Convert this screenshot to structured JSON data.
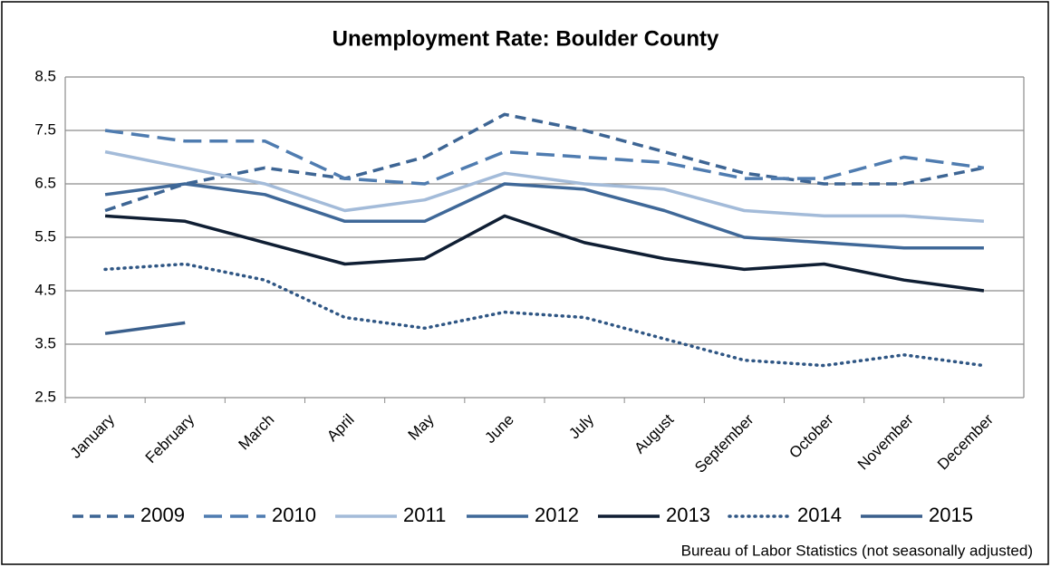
{
  "chart_data": {
    "type": "line",
    "title": "Unemployment Rate: Boulder County",
    "source": "Bureau of Labor Statistics (not seasonally adjusted)",
    "categories": [
      "January",
      "February",
      "March",
      "April",
      "May",
      "June",
      "July",
      "August",
      "September",
      "October",
      "November",
      "December"
    ],
    "ylim": [
      2.5,
      8.5
    ],
    "yticks": [
      2.5,
      3.5,
      4.5,
      5.5,
      6.5,
      7.5,
      8.5
    ],
    "grid": true,
    "legend": "bottom",
    "series": [
      {
        "name": "2009",
        "color": "#3d6594",
        "dash": "short",
        "values": [
          6.0,
          6.5,
          6.8,
          6.6,
          7.0,
          7.8,
          7.5,
          7.1,
          6.7,
          6.5,
          6.5,
          6.8
        ]
      },
      {
        "name": "2010",
        "color": "#4f7cb0",
        "dash": "long",
        "values": [
          7.5,
          7.3,
          7.3,
          6.6,
          6.5,
          7.1,
          7.0,
          6.9,
          6.6,
          6.6,
          7.0,
          6.8
        ]
      },
      {
        "name": "2011",
        "color": "#a3bbd9",
        "dash": "solid",
        "values": [
          7.1,
          6.8,
          6.5,
          6.0,
          6.2,
          6.7,
          6.5,
          6.4,
          6.0,
          5.9,
          5.9,
          5.8
        ]
      },
      {
        "name": "2012",
        "color": "#3f6898",
        "dash": "solid",
        "values": [
          6.3,
          6.5,
          6.3,
          5.8,
          5.8,
          6.5,
          6.4,
          6.0,
          5.5,
          5.4,
          5.3,
          5.3
        ]
      },
      {
        "name": "2013",
        "color": "#0f1e33",
        "dash": "solid",
        "values": [
          5.9,
          5.8,
          5.4,
          5.0,
          5.1,
          5.9,
          5.4,
          5.1,
          4.9,
          5.0,
          4.7,
          4.5
        ]
      },
      {
        "name": "2014",
        "color": "#2f5684",
        "dash": "dot",
        "values": [
          4.9,
          5.0,
          4.7,
          4.0,
          3.8,
          4.1,
          4.0,
          3.6,
          3.2,
          3.1,
          3.3,
          3.1
        ]
      },
      {
        "name": "2015",
        "color": "#3a5f8c",
        "dash": "solid",
        "values": [
          3.7,
          3.9,
          null,
          null,
          null,
          null,
          null,
          null,
          null,
          null,
          null,
          null
        ]
      }
    ]
  }
}
